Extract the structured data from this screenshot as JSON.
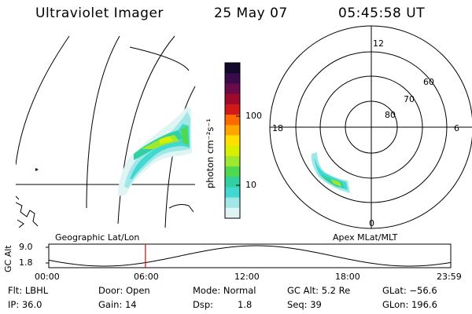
{
  "header": {
    "instrument": "Ultraviolet Imager",
    "date": "25 May 07",
    "time": "05:45:58 UT"
  },
  "colorbar": {
    "label": "photon cm⁻²s⁻¹",
    "ticks": [
      "100",
      "10"
    ],
    "colors": [
      "#120a2a",
      "#3a0a4a",
      "#6a0a4a",
      "#a00a2a",
      "#d01a1a",
      "#ff6a00",
      "#ffa500",
      "#ffe000",
      "#d8f000",
      "#a0e830",
      "#50d850",
      "#30d0a0",
      "#40d8d0",
      "#a0e8e8",
      "#e0f4f4"
    ]
  },
  "left_panel": {
    "label": "Geographic Lat/Lon"
  },
  "right_panel": {
    "label": "Apex MLat/MLT",
    "mlt_labels": {
      "top": "12",
      "left": "18",
      "right": "6",
      "bottom": "0"
    },
    "lat_labels": [
      "60",
      "70",
      "80"
    ]
  },
  "altitude_plot": {
    "ylabel": "GC Alt",
    "yticks": [
      "9.0",
      "1.8"
    ],
    "xticks": [
      "00:00",
      "06:00",
      "12:00",
      "18:00",
      "23:59"
    ],
    "current_marker_hour": 5.77
  },
  "status": {
    "filter": "Flt: LBHL",
    "door": "Door: Open",
    "mode": "Mode: Normal",
    "gc_alt": "GC Alt: 5.2 Re",
    "glat": "GLat: −56.6",
    "ip": "IP: 36.0",
    "gain": "Gain: 14",
    "dsp_label": "Dsp:",
    "dsp_value": "1.8",
    "seq": "Seq: 39",
    "glon": "GLon: 196.6"
  }
}
